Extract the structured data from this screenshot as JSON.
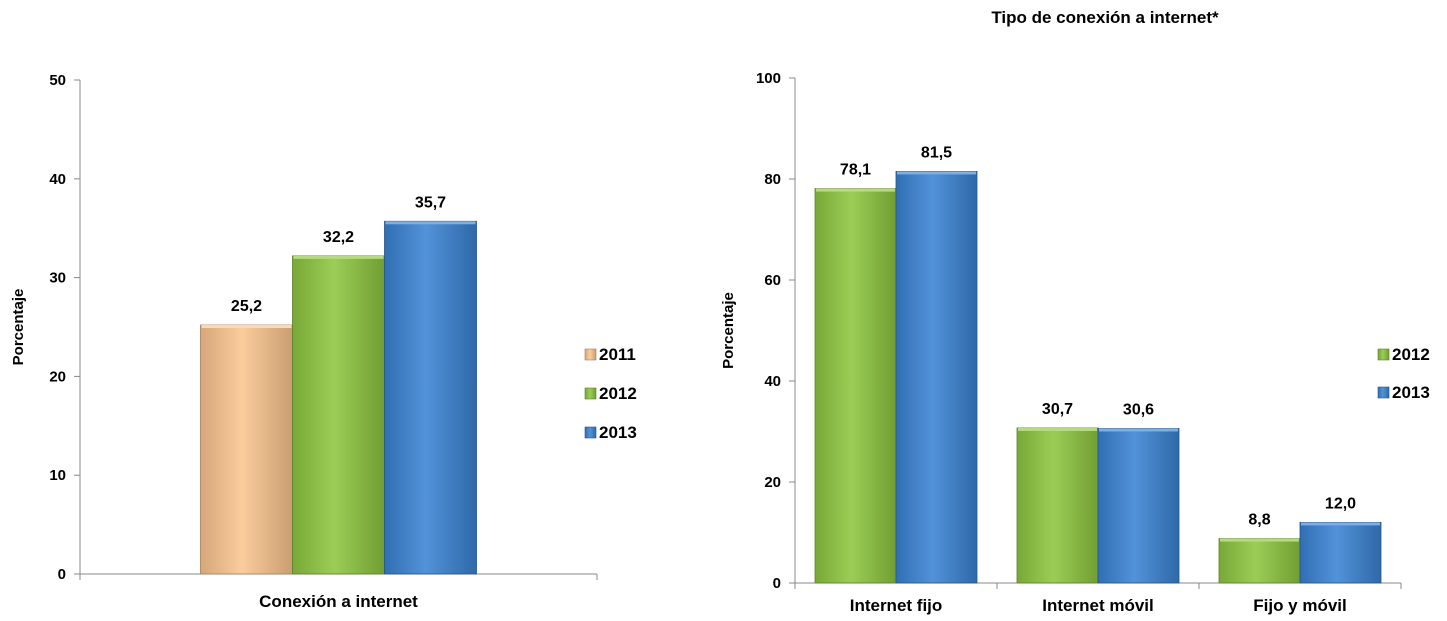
{
  "colors": {
    "2011": "#fbc58e",
    "2012": "#8dc63f",
    "2013": "#3a83d3"
  },
  "chart_data": [
    {
      "type": "bar",
      "title": "",
      "xlabel": "",
      "ylabel": "Porcentaje",
      "ylim": [
        0,
        50
      ],
      "yticks": [
        0,
        10,
        20,
        30,
        40,
        50
      ],
      "categories": [
        "Conexión a internet"
      ],
      "series": [
        {
          "name": "2011",
          "values": [
            25.2
          ],
          "labels": [
            "25,2"
          ]
        },
        {
          "name": "2012",
          "values": [
            32.2
          ],
          "labels": [
            "32,2"
          ]
        },
        {
          "name": "2013",
          "values": [
            35.7
          ],
          "labels": [
            "35,7"
          ]
        }
      ],
      "legend": "right",
      "grid": false
    },
    {
      "type": "bar",
      "title": "Tipo de conexión a internet*",
      "xlabel": "",
      "ylabel": "Porcentaje",
      "ylim": [
        0,
        100
      ],
      "yticks": [
        0,
        20,
        40,
        60,
        80,
        100
      ],
      "categories": [
        "Internet fijo",
        "Internet móvil",
        "Fijo y móvil"
      ],
      "series": [
        {
          "name": "2012",
          "values": [
            78.1,
            30.7,
            8.8
          ],
          "labels": [
            "78,1",
            "30,7",
            "8,8"
          ]
        },
        {
          "name": "2013",
          "values": [
            81.5,
            30.6,
            12.0
          ],
          "labels": [
            "81,5",
            "30,6",
            "12,0"
          ]
        }
      ],
      "legend": "right",
      "grid": false
    }
  ]
}
